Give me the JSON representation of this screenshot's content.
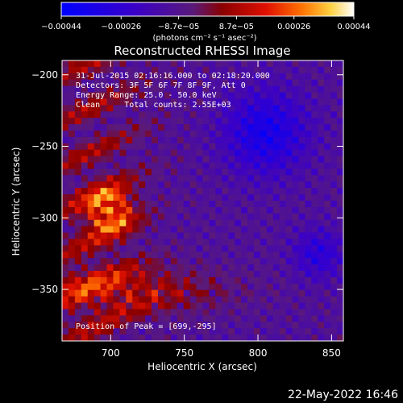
{
  "chart_data": {
    "type": "heatmap",
    "title": "Reconstructed RHESSI Image",
    "xlabel": "Heliocentric X (arcsec)",
    "ylabel": "Heliocentric Y (arcsec)",
    "xlim": [
      667,
      858
    ],
    "ylim": [
      -386,
      -190
    ],
    "x_ticks": [
      700,
      750,
      800,
      850
    ],
    "y_ticks": [
      -200,
      -250,
      -300,
      -350
    ],
    "x_tick_labels": [
      "700",
      "750",
      "800",
      "850"
    ],
    "y_tick_labels": [
      "−200",
      "−250",
      "−300",
      "−350"
    ],
    "colorbar": {
      "min": -0.00044,
      "max": 0.00044,
      "tick_values": [
        -0.00044,
        -0.00026,
        -8.7e-05,
        8.7e-05,
        0.00026,
        0.00044
      ],
      "tick_labels": [
        "−0.00044",
        "−0.00026",
        "−8.7e−05",
        "8.7e−05",
        "0.00026",
        "0.00044"
      ],
      "unit_label": "(photons cm⁻² s⁻¹ asec⁻²)"
    },
    "annotations": [
      "31-Jul-2015 02:16:16.000 to 02:18:20.000",
      "Detectors: 3F 5F 6F 7F 8F 9F, Att 0",
      "Energy Range: 25.0 - 50.0 keV",
      "Clean     Total counts: 2.55E+03"
    ],
    "peak_label": "Position of Peak = [699,-295]",
    "peak": [
      699,
      -295
    ],
    "colors": {
      "background": "#000000",
      "axes": "#ffffff"
    }
  },
  "footer": {
    "timestamp": "22-May-2022 16:46"
  }
}
